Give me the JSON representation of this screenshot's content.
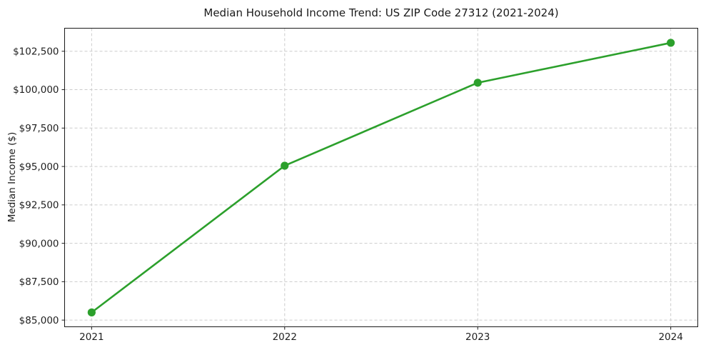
{
  "chart_data": {
    "type": "line",
    "title": "Median Household Income Trend: US ZIP Code 27312 (2021-2024)",
    "xlabel": "",
    "ylabel": "Median Income ($)",
    "x": [
      2021,
      2022,
      2023,
      2024
    ],
    "series": [
      {
        "name": "Median Household Income",
        "values": [
          85500,
          95050,
          100450,
          103050
        ]
      }
    ],
    "xtick_labels": [
      "2021",
      "2022",
      "2023",
      "2024"
    ],
    "ytick_values": [
      85000,
      87500,
      90000,
      92500,
      95000,
      97500,
      100000,
      102500
    ],
    "ytick_labels": [
      "$85,000",
      "$87,500",
      "$90,000",
      "$92,500",
      "$95,000",
      "$97,500",
      "$100,000",
      "$102,500"
    ],
    "xlim": [
      2020.86,
      2024.14
    ],
    "ylim": [
      84565,
      104000
    ],
    "grid": true,
    "grid_style": "dashed",
    "legend": "none",
    "line_color": "#2ca02c",
    "marker": "circle",
    "grid_color": "#cccccc",
    "spine_color": "#1a1a1a",
    "text_color": "#1f1f1f",
    "background_color": "#ffffff"
  }
}
